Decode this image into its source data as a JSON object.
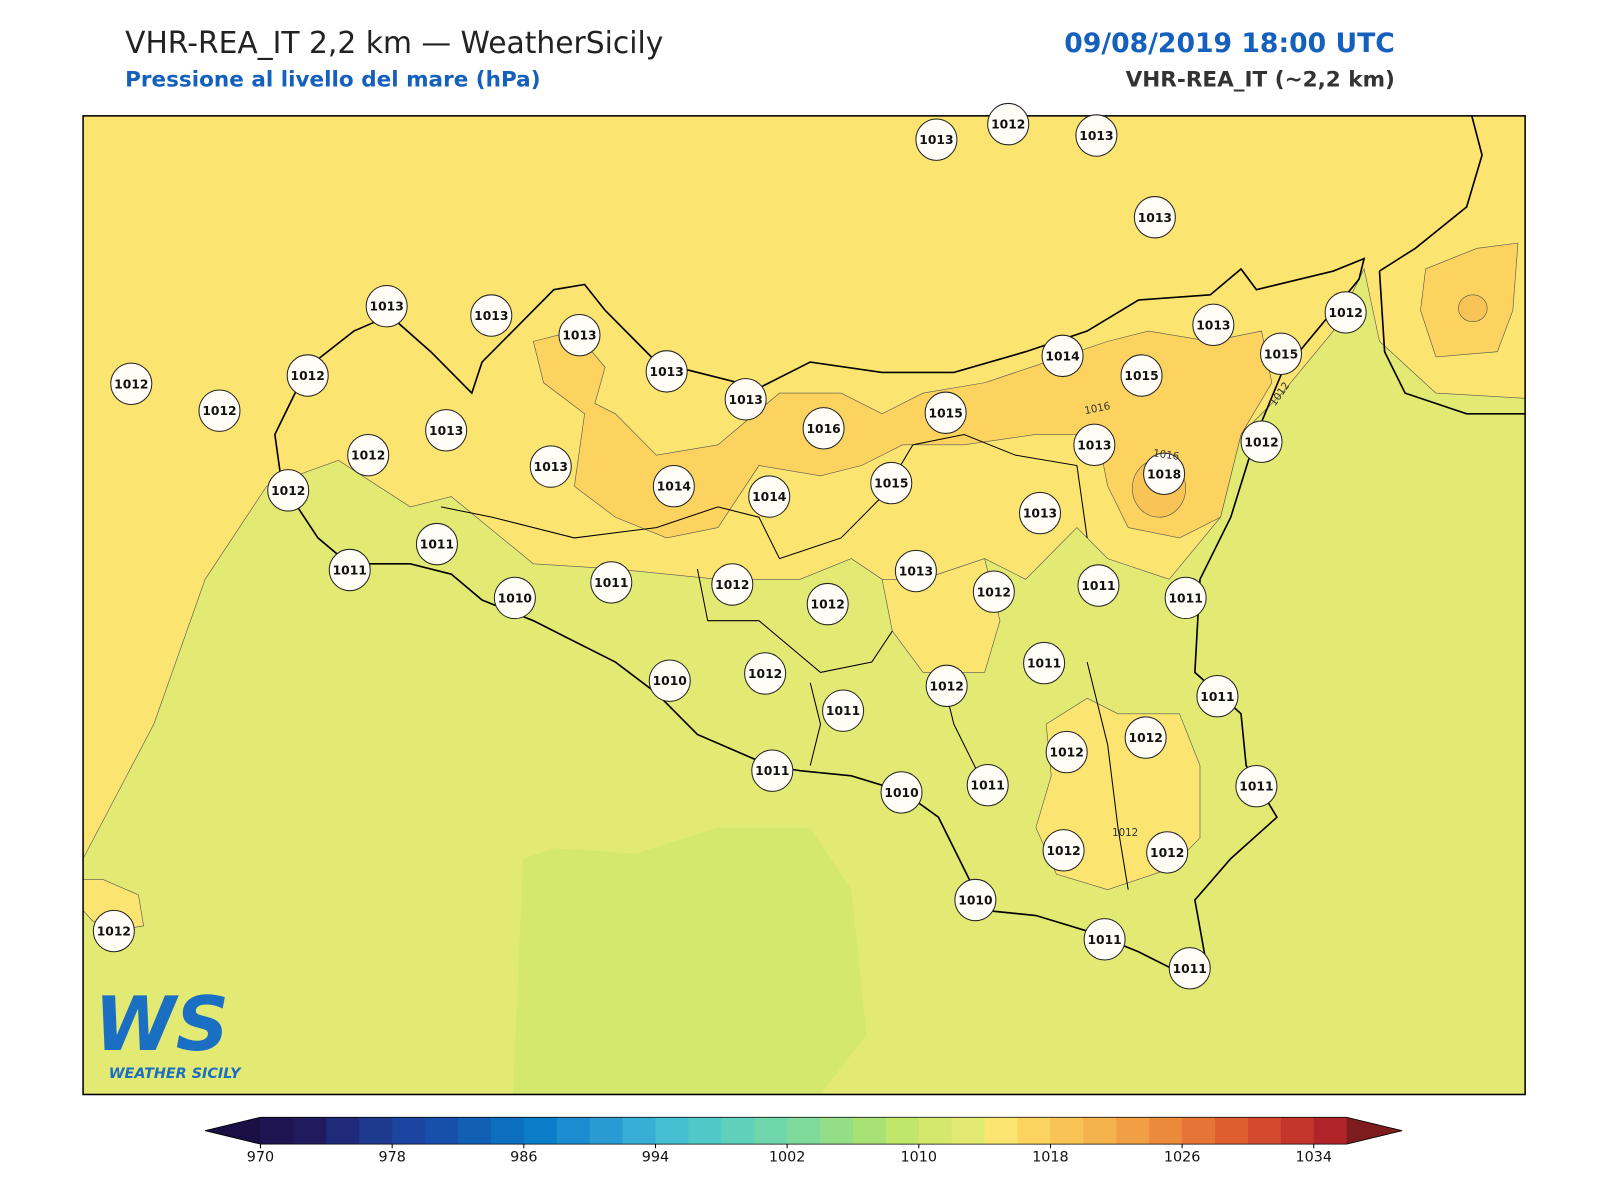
{
  "header": {
    "title": "VHR-REA_IT 2,2 km — WeatherSicily",
    "subtitle": "Pressione al livello del mare (hPa)",
    "datetime": "09/08/2019 18:00 UTC",
    "model": "VHR-REA_IT (~2,2 km)"
  },
  "map": {
    "stations": [
      1013,
      1012,
      1013,
      1013,
      1013,
      1013,
      1013,
      1013,
      1013,
      1012,
      1012,
      1012,
      1013,
      1012,
      1012,
      1013,
      1014,
      1014,
      1016,
      1015,
      1015,
      1014,
      1015,
      1013,
      1015,
      1012,
      1012,
      1013,
      1018,
      1013,
      1011,
      1011,
      1010,
      1011,
      1012,
      1012,
      1013,
      1012,
      1011,
      1011,
      1010,
      1012,
      1011,
      1012,
      1011,
      1011,
      1012,
      1012,
      1011,
      1010,
      1011,
      1011,
      1012,
      1012,
      1010,
      1011,
      1011,
      1012
    ],
    "contour_labels": [
      1016,
      1016,
      1012,
      1012
    ]
  },
  "colorbar": {
    "lim": [
      970,
      1036
    ],
    "ticks": [
      970,
      978,
      986,
      994,
      1002,
      1010,
      1018,
      1026,
      1034
    ],
    "colors": [
      "#1f1452",
      "#221a5e",
      "#1f2a7a",
      "#1e3a8e",
      "#1b45a0",
      "#1650ac",
      "#1160b6",
      "#0c6fc0",
      "#0a7dc8",
      "#1a8ccf",
      "#2a9ad3",
      "#36aed6",
      "#45bfd2",
      "#50c8c8",
      "#60d0ba",
      "#70d6ac",
      "#80da9c",
      "#94de88",
      "#a8e276",
      "#c0e66a",
      "#d4e86e",
      "#e3ea74",
      "#fbe470",
      "#fcd35f",
      "#f8c455",
      "#f4b24c",
      "#f09f44",
      "#ec8a3c",
      "#e67436",
      "#de5e30",
      "#d34a2e",
      "#c4362c",
      "#b0242a"
    ],
    "under": "#1a0f45",
    "over": "#7c1c1c"
  },
  "logo": {
    "initials": "WS",
    "name": "WEATHER SICILY"
  }
}
